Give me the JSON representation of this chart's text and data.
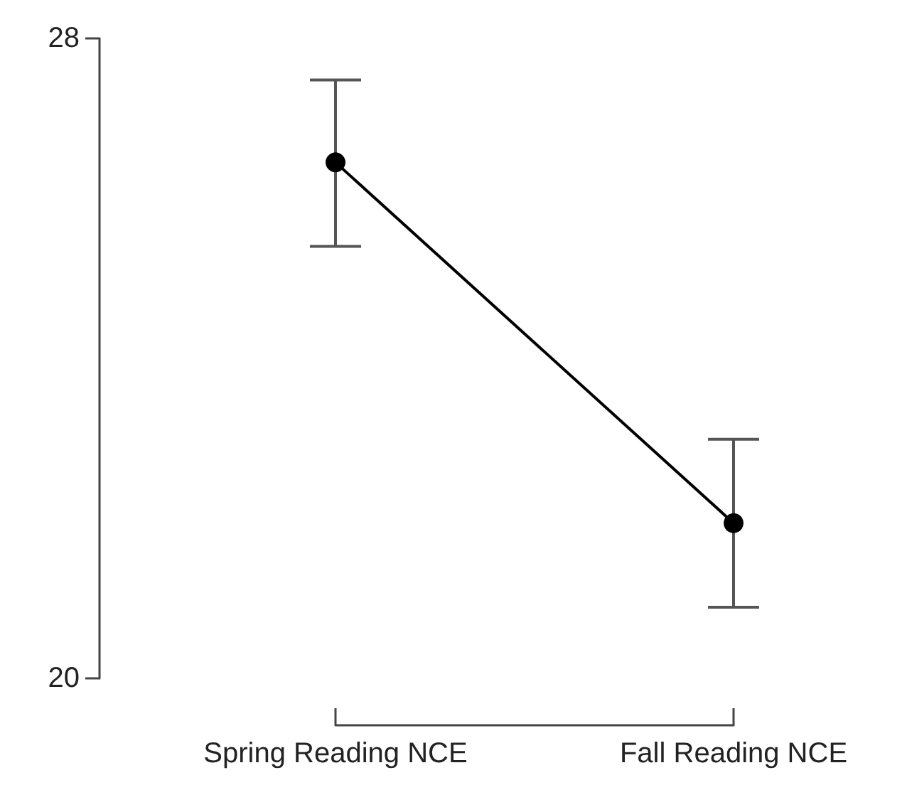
{
  "chart_data": {
    "type": "line",
    "categories": [
      "Spring Reading NCE",
      "Fall Reading NCE"
    ],
    "series": [
      {
        "color": "#000000",
        "values": [
          26.45,
          21.94
        ],
        "errors": [
          [
            25.4,
            27.48
          ],
          [
            20.89,
            22.99
          ]
        ]
      }
    ],
    "ylim": [
      20,
      28
    ],
    "yticks": [
      20,
      28
    ],
    "marker": "circle",
    "line_style": "solid",
    "grid": false
  }
}
